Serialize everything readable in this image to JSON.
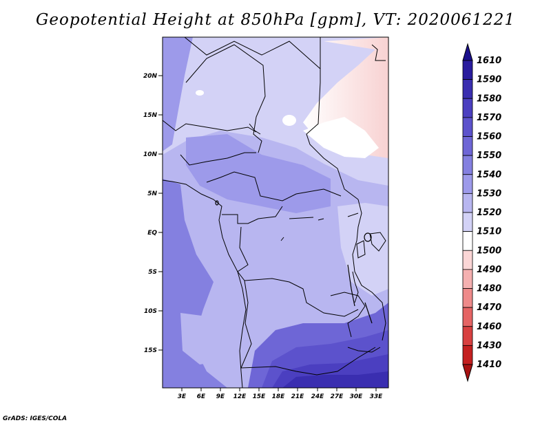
{
  "title": "Geopotential Height at 850hPa [gpm], VT: 2020061221",
  "credit": "GrADS: IGES/COLA",
  "map": {
    "lat_labels": [
      "20N",
      "15N",
      "10N",
      "5N",
      "EQ",
      "5S",
      "10S",
      "15S"
    ],
    "lon_labels": [
      "3E",
      "6E",
      "9E",
      "12E",
      "15E",
      "18E",
      "21E",
      "24E",
      "27E",
      "30E",
      "33E"
    ]
  },
  "colorbar": {
    "levels": [
      "1610",
      "1590",
      "1580",
      "1570",
      "1560",
      "1550",
      "1540",
      "1530",
      "1520",
      "1510",
      "1500",
      "1490",
      "1480",
      "1470",
      "1460",
      "1430",
      "1410"
    ],
    "colors": [
      "#1a0f8c",
      "#2a1c9e",
      "#3a2eb0",
      "#4b3fc0",
      "#5c52cc",
      "#6e66d6",
      "#8480e0",
      "#9d9aea",
      "#b8b6f0",
      "#d3d2f6",
      "#ffffff",
      "#fbd6d6",
      "#f5b0b0",
      "#ee8a8a",
      "#e56464",
      "#d84040",
      "#c42020",
      "#a81212"
    ]
  },
  "colors": {
    "deep_blue": "#3a2eb0",
    "mid_blue": "#8480e0",
    "light_blue": "#b8b6f0",
    "pale": "#d3d2f6",
    "pink": "#fbd6d6"
  }
}
